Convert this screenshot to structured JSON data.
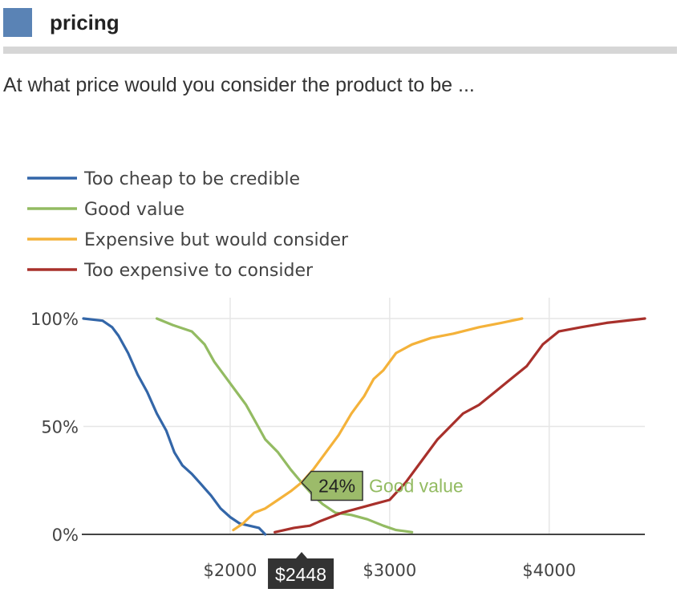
{
  "header": {
    "title": "pricing"
  },
  "question": "At what price would you consider the product to be ...",
  "colors": {
    "too_cheap": "#3366a8",
    "good_value": "#93bb62",
    "expensive": "#f4b23a",
    "too_expensive": "#a8302b",
    "tooltip_fill": "#9cbb6a",
    "crosshair_label_bg": "#333333"
  },
  "tooltip": {
    "value": "24%",
    "series": "Good value",
    "x_value": 2448,
    "y_value": 24
  },
  "crosshair": {
    "label": "$2448"
  },
  "chart_data": {
    "type": "line",
    "title": "",
    "xlabel": "",
    "ylabel": "",
    "xlim": [
      1080,
      4600
    ],
    "ylim": [
      0,
      100
    ],
    "x_ticks": [
      2000,
      3000,
      4000
    ],
    "x_tick_labels": [
      "$2000",
      "$3000",
      "$4000"
    ],
    "y_ticks": [
      0,
      50,
      100
    ],
    "y_tick_labels": [
      "0%",
      "50%",
      "100%"
    ],
    "legend_position": "top-left",
    "series": [
      {
        "name": "Too cheap to be credible",
        "color": "#3366a8",
        "x": [
          1080,
          1200,
          1260,
          1300,
          1360,
          1420,
          1480,
          1540,
          1600,
          1650,
          1700,
          1760,
          1820,
          1880,
          1940,
          2000,
          2060,
          2120,
          2180,
          2220
        ],
        "y": [
          100,
          99,
          96,
          92,
          84,
          74,
          66,
          56,
          48,
          38,
          32,
          28,
          23,
          18,
          12,
          8,
          5,
          4,
          3,
          0
        ]
      },
      {
        "name": "Good value",
        "color": "#93bb62",
        "x": [
          1540,
          1640,
          1760,
          1840,
          1900,
          1960,
          2040,
          2100,
          2160,
          2220,
          2300,
          2380,
          2448,
          2520,
          2580,
          2660,
          2760,
          2860,
          2960,
          3040,
          3140
        ],
        "y": [
          100,
          97,
          94,
          88,
          80,
          74,
          66,
          60,
          52,
          44,
          38,
          30,
          24,
          18,
          14,
          10,
          9,
          7,
          4,
          2,
          1
        ]
      },
      {
        "name": "Expensive but would consider",
        "color": "#f4b23a",
        "x": [
          2020,
          2080,
          2150,
          2220,
          2300,
          2380,
          2448,
          2520,
          2600,
          2680,
          2760,
          2840,
          2900,
          2960,
          3040,
          3140,
          3260,
          3400,
          3560,
          3700,
          3830
        ],
        "y": [
          2,
          5,
          10,
          12,
          16,
          20,
          24,
          30,
          38,
          46,
          56,
          64,
          72,
          76,
          84,
          88,
          91,
          93,
          96,
          98,
          100
        ]
      },
      {
        "name": "Too expensive to consider",
        "color": "#a8302b",
        "x": [
          2280,
          2400,
          2500,
          2560,
          2700,
          2900,
          3000,
          3100,
          3200,
          3300,
          3380,
          3460,
          3560,
          3660,
          3760,
          3860,
          3960,
          4060,
          4200,
          4360,
          4600
        ],
        "y": [
          1,
          3,
          4,
          6,
          10,
          14,
          16,
          24,
          34,
          44,
          50,
          56,
          60,
          66,
          72,
          78,
          88,
          94,
          96,
          98,
          100
        ]
      }
    ]
  }
}
